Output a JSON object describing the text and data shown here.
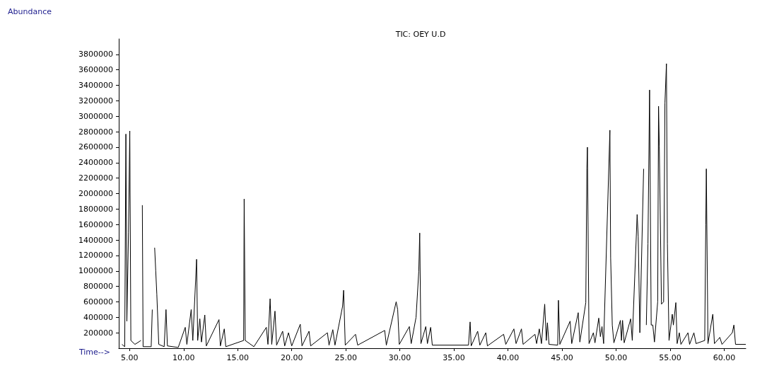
{
  "chart_data": {
    "type": "line",
    "title": "TIC: OEY U.D",
    "xlabel": "Time-->",
    "ylabel": "Abundance",
    "x": [
      4.3,
      4.55,
      4.66,
      4.75,
      4.9,
      5.02,
      5.12,
      5.5,
      6.05,
      6.12,
      6.18,
      6.25,
      7.0,
      7.1,
      7.24,
      7.32,
      7.42,
      7.52,
      7.7,
      8.2,
      8.37,
      8.5,
      9.5,
      10.15,
      10.3,
      10.7,
      10.85,
      11.2,
      11.3,
      11.5,
      11.65,
      11.96,
      12.1,
      13.27,
      13.4,
      13.76,
      13.9,
      15.55,
      15.6,
      15.7,
      16.5,
      17.65,
      17.8,
      18.0,
      18.15,
      18.45,
      18.6,
      19.16,
      19.35,
      19.7,
      20.0,
      20.79,
      20.95,
      21.6,
      21.75,
      23.3,
      23.45,
      23.8,
      24.0,
      24.7,
      24.8,
      24.95,
      25.9,
      26.1,
      28.6,
      28.75,
      29.66,
      29.8,
      29.95,
      30.88,
      31.05,
      31.5,
      31.75,
      31.84,
      31.95,
      32.4,
      32.55,
      32.85,
      33.0,
      36.35,
      36.5,
      36.6,
      37.2,
      37.4,
      37.95,
      38.1,
      39.6,
      39.8,
      40.55,
      40.75,
      41.25,
      41.4,
      42.5,
      42.65,
      42.9,
      43.1,
      43.4,
      43.55,
      43.65,
      43.8,
      44.6,
      44.67,
      44.8,
      45.75,
      45.9,
      46.5,
      46.65,
      47.2,
      47.3,
      47.35,
      47.5,
      47.9,
      48.05,
      48.4,
      48.55,
      48.7,
      48.85,
      49.43,
      49.5,
      49.65,
      49.8,
      50.4,
      50.5,
      50.6,
      50.75,
      51.35,
      51.5,
      51.95,
      52.05,
      52.2,
      52.55,
      52.65,
      52.8,
      52.95,
      53.1,
      53.25,
      53.4,
      53.55,
      53.85,
      53.93,
      54.0,
      54.2,
      54.4,
      54.52,
      54.66,
      54.75,
      54.9,
      55.2,
      55.3,
      55.53,
      55.65,
      55.85,
      56.0,
      56.65,
      56.8,
      57.2,
      57.4,
      58.2,
      58.3,
      58.35,
      58.5,
      58.95,
      59.1,
      59.6,
      59.8,
      60.75,
      60.9,
      61.05,
      62.0
    ],
    "series": [
      {
        "color": "#000000",
        "values": [
          50000,
          20000,
          2770000,
          350000,
          1500000,
          2810000,
          100000,
          50000,
          100000,
          null,
          1850000,
          20000,
          20000,
          500000,
          null,
          1300000,
          1000000,
          700000,
          50000,
          20000,
          500000,
          30000,
          10000,
          270000,
          50000,
          500000,
          100000,
          1150000,
          100000,
          380000,
          80000,
          430000,
          30000,
          370000,
          30000,
          250000,
          20000,
          100000,
          1930000,
          100000,
          20000,
          270000,
          50000,
          640000,
          50000,
          480000,
          40000,
          220000,
          30000,
          200000,
          30000,
          310000,
          30000,
          220000,
          30000,
          200000,
          40000,
          240000,
          40000,
          540000,
          750000,
          40000,
          180000,
          40000,
          230000,
          40000,
          600000,
          500000,
          50000,
          280000,
          60000,
          400000,
          990000,
          1490000,
          60000,
          280000,
          60000,
          270000,
          40000,
          40000,
          340000,
          30000,
          220000,
          40000,
          200000,
          30000,
          180000,
          50000,
          250000,
          60000,
          250000,
          50000,
          180000,
          60000,
          250000,
          60000,
          570000,
          100000,
          330000,
          50000,
          40000,
          620000,
          50000,
          350000,
          60000,
          460000,
          80000,
          590000,
          2330000,
          2600000,
          60000,
          200000,
          70000,
          390000,
          150000,
          280000,
          60000,
          2820000,
          1170000,
          300000,
          70000,
          360000,
          100000,
          360000,
          70000,
          380000,
          100000,
          1730000,
          1440000,
          200000,
          2320000,
          null,
          300000,
          1350000,
          3340000,
          300000,
          300000,
          80000,
          600000,
          3130000,
          2610000,
          570000,
          600000,
          3170000,
          3680000,
          1350000,
          100000,
          440000,
          300000,
          590000,
          60000,
          200000,
          50000,
          200000,
          50000,
          200000,
          60000,
          100000,
          1600000,
          2320000,
          60000,
          440000,
          60000,
          140000,
          50000,
          200000,
          300000,
          50000,
          50000
        ]
      }
    ],
    "xlim": [
      4,
      62
    ],
    "ylim": [
      0,
      4000000
    ],
    "xticks": [
      {
        "value": 5,
        "label": "5.00"
      },
      {
        "value": 10,
        "label": "10.00"
      },
      {
        "value": 15,
        "label": "15.00"
      },
      {
        "value": 20,
        "label": "20.00"
      },
      {
        "value": 25,
        "label": "25.00"
      },
      {
        "value": 30,
        "label": "30.00"
      },
      {
        "value": 35,
        "label": "35.00"
      },
      {
        "value": 40,
        "label": "40.00"
      },
      {
        "value": 45,
        "label": "45.00"
      },
      {
        "value": 50,
        "label": "50.00"
      },
      {
        "value": 55,
        "label": "55.00"
      },
      {
        "value": 60,
        "label": "60.00"
      }
    ],
    "yticks": [
      200000,
      400000,
      600000,
      800000,
      1000000,
      1200000,
      1400000,
      1600000,
      1800000,
      2000000,
      2200000,
      2400000,
      2600000,
      2800000,
      3000000,
      3200000,
      3400000,
      3600000,
      3800000
    ],
    "grid": false,
    "marker": "none",
    "line_style": "solid"
  }
}
